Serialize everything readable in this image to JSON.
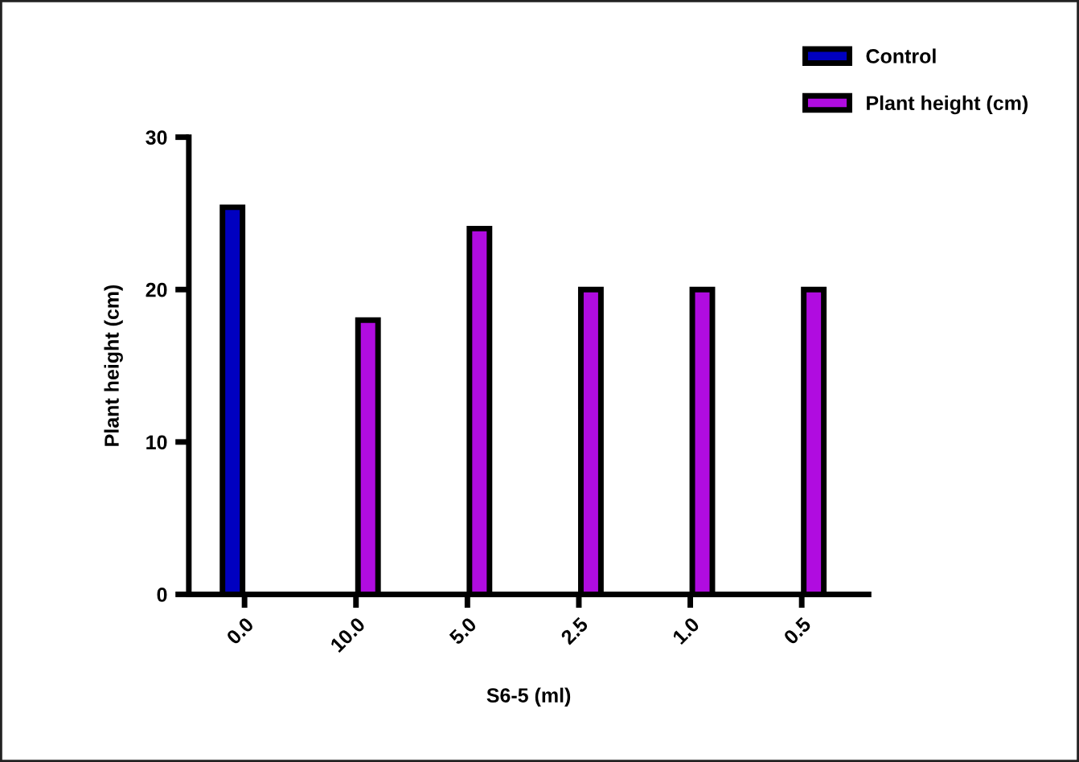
{
  "chart_data": {
    "type": "bar",
    "xlabel": "S6-5 (ml)",
    "ylabel": "Plant height (cm)",
    "categories": [
      "0.0",
      "10.0",
      "5.0",
      "2.5",
      "1.0",
      "0.5"
    ],
    "series": [
      {
        "name": "Control",
        "color": "#0000c0",
        "values": [
          25.4,
          null,
          null,
          null,
          null,
          null
        ]
      },
      {
        "name": "Plant height (cm)",
        "color": "#b00ce0",
        "values": [
          null,
          18,
          24,
          20,
          20,
          20
        ]
      }
    ],
    "ylim": [
      0,
      30
    ],
    "yticks": [
      0,
      10,
      20,
      30
    ],
    "grid": false,
    "legend": "top right"
  }
}
